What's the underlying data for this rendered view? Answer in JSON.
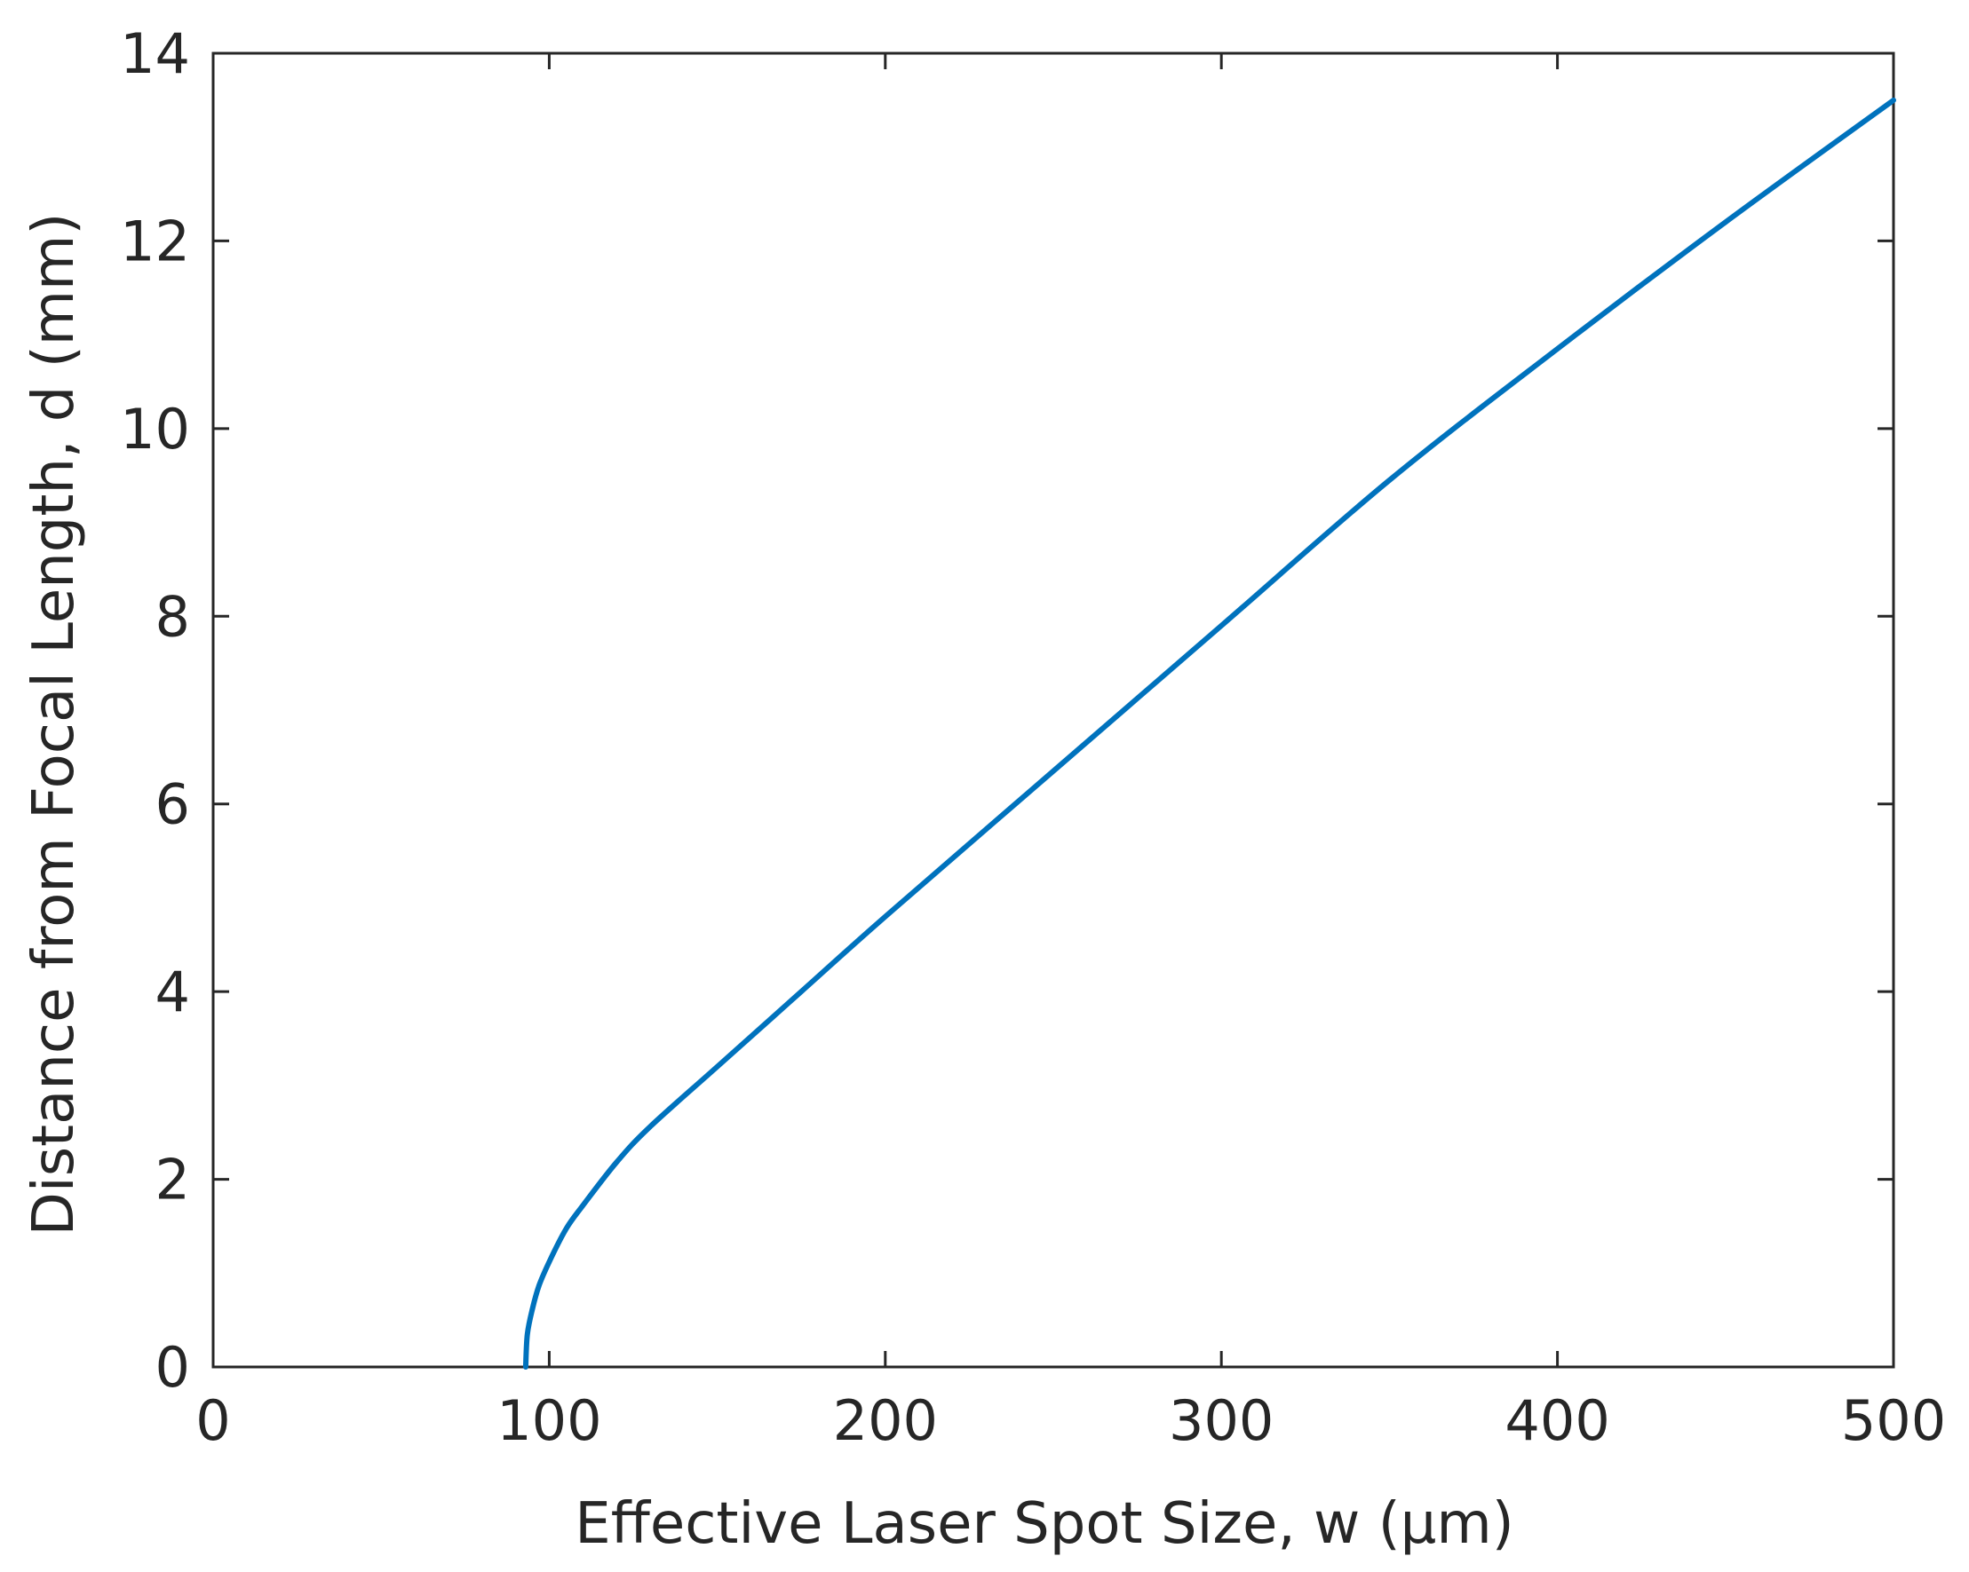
{
  "chart_data": {
    "type": "line",
    "title": "",
    "xlabel": "Effective Laser Spot Size, w (μm)",
    "ylabel": "Distance from Focal Length, d (mm)",
    "xlim": [
      0,
      500
    ],
    "ylim": [
      0,
      14
    ],
    "xticks": [
      0,
      100,
      200,
      300,
      400,
      500
    ],
    "yticks": [
      0,
      2,
      4,
      6,
      8,
      10,
      12,
      14
    ],
    "xtick_labels": [
      "0",
      "100",
      "200",
      "300",
      "400",
      "500"
    ],
    "ytick_labels": [
      "0",
      "2",
      "4",
      "6",
      "8",
      "10",
      "12",
      "14"
    ],
    "grid": false,
    "box": true,
    "series": [
      {
        "color": "#0072BD",
        "x": [
          93,
          93.5,
          95,
          97,
          100,
          105,
          110,
          120,
          130,
          150,
          175,
          200,
          250,
          300,
          350,
          400,
          450,
          500
        ],
        "y": [
          0,
          0.35,
          0.62,
          0.87,
          1.12,
          1.47,
          1.72,
          2.18,
          2.56,
          3.2,
          4.0,
          4.8,
          6.35,
          7.9,
          9.45,
          10.85,
          12.2,
          13.5
        ]
      }
    ]
  }
}
